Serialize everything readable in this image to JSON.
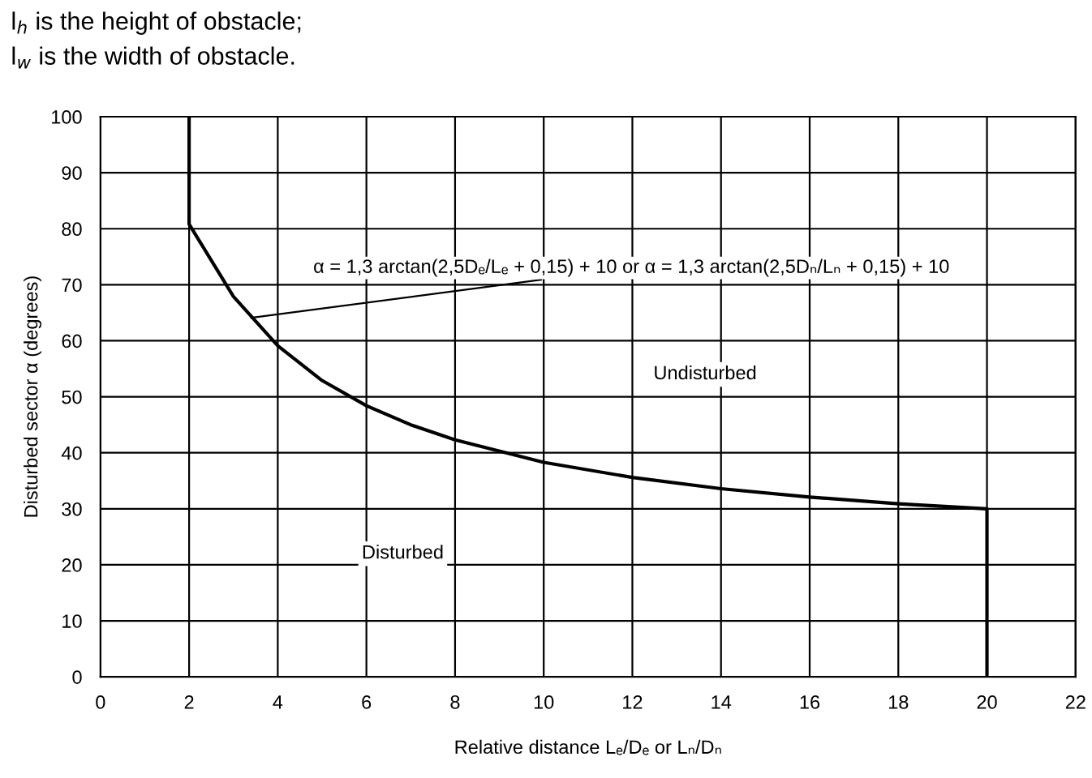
{
  "chart_data": {
    "type": "line",
    "ylabel": "Disturbed sector α (degrees)",
    "xlabel": "Relative distance Lₑ/Dₑ or Lₙ/Dₙ",
    "x": [
      2,
      2,
      3,
      4,
      5,
      6,
      7,
      8,
      10,
      12,
      14,
      16,
      18,
      20,
      20
    ],
    "series": [
      {
        "color": "#000000",
        "values": [
          100,
          80.8,
          67.9,
          59.1,
          52.9,
          48.4,
          45.0,
          42.3,
          38.3,
          35.6,
          33.6,
          32.1,
          30.9,
          30.0,
          0
        ]
      }
    ],
    "xlim": [
      0,
      22
    ],
    "xticks": [
      0,
      2,
      4,
      6,
      8,
      10,
      12,
      14,
      16,
      18,
      20,
      22
    ],
    "ylim": [
      0,
      100
    ],
    "yticks": [
      0,
      10,
      20,
      30,
      40,
      50,
      60,
      70,
      80,
      90,
      100
    ],
    "grid": true,
    "marker": "none",
    "line_style": "solid",
    "legend": false,
    "annotations": [
      "l$_{h}$ is the height of obstacle;",
      "l$_{w}$ is the width of obstacle.",
      {
        "text": "α = 1,3 arctan(2,5Dₑ/Lₑ + 0,15) + 10 or α = 1,3 arctan(2,5Dₙ/Lₙ + 0,15) + 10",
        "x": 3.3,
        "y": 64
      },
      "Undisturbed",
      "Disturbed"
    ]
  }
}
